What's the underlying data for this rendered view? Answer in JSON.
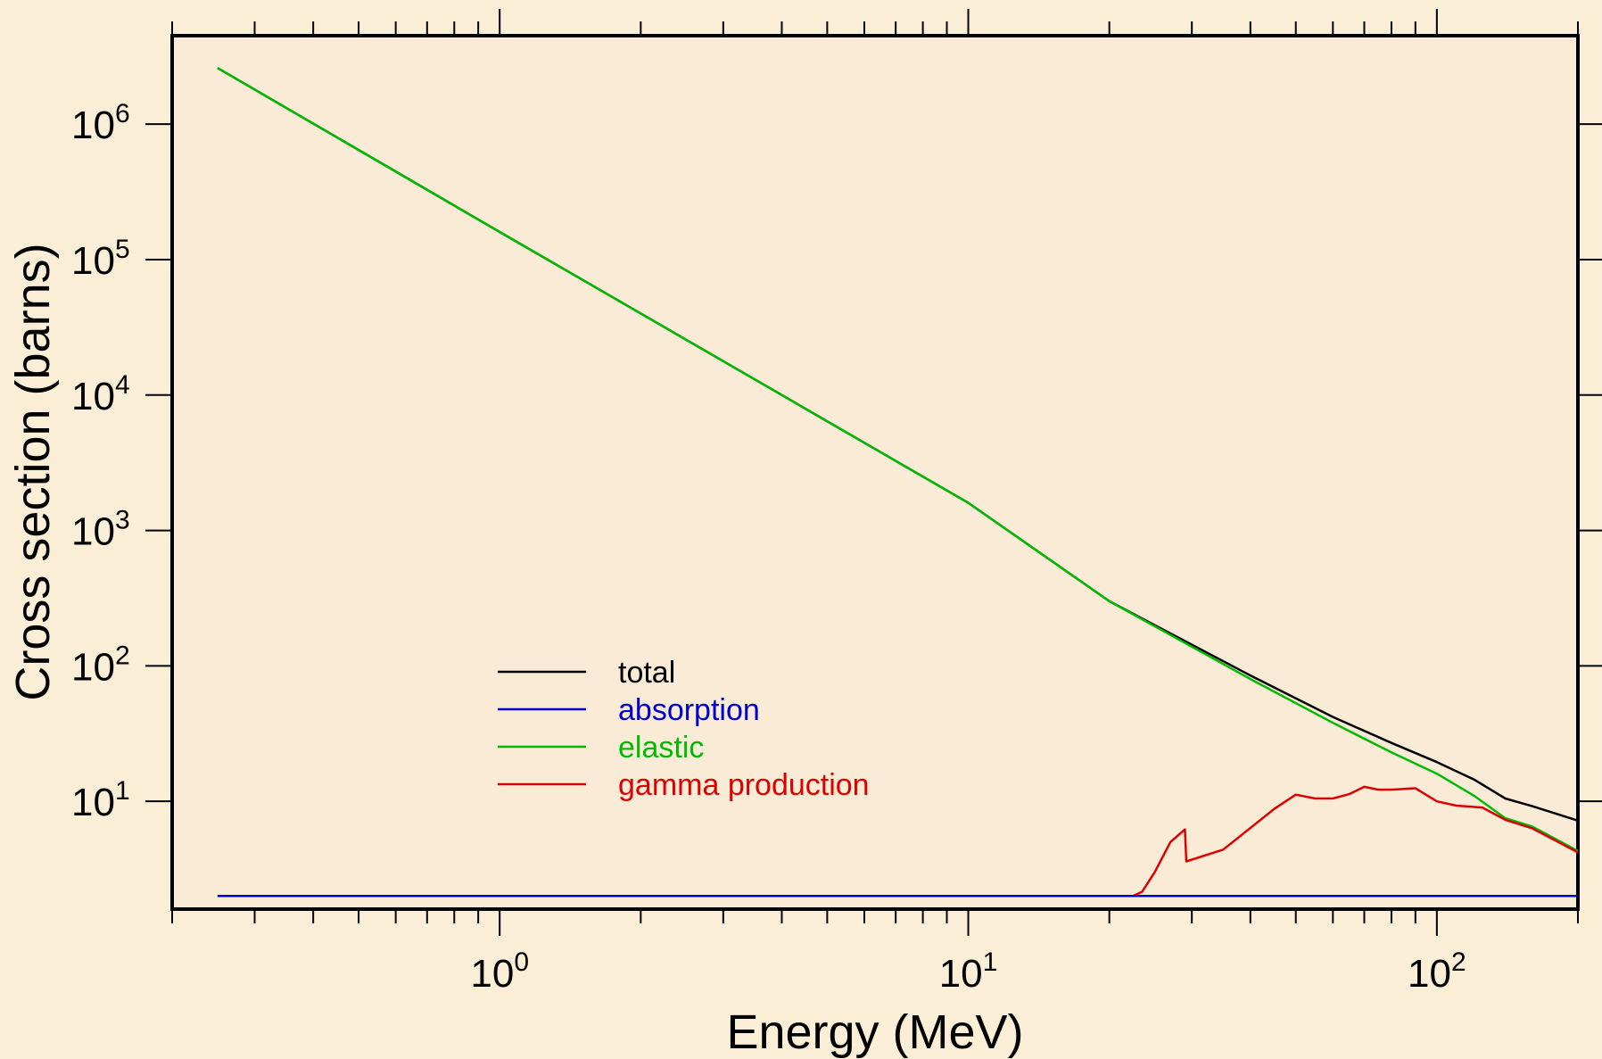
{
  "colors": {
    "page_background": "#fbeed7",
    "plot_background": "#faebd7",
    "total": "#000000",
    "absorption": "#0000cc",
    "elastic": "#00bb00",
    "gamma_production": "#dd0000"
  },
  "chart_data": {
    "type": "line",
    "xscale": "log",
    "yscale": "log",
    "xlabel": "Energy (MeV)",
    "ylabel": "Cross section (barns)",
    "xlim": [
      0.2,
      200
    ],
    "ylim": [
      1.6,
      4500000
    ],
    "x_ticks": [
      {
        "base": "10",
        "exp": "0",
        "value": 1
      },
      {
        "base": "10",
        "exp": "1",
        "value": 10
      },
      {
        "base": "10",
        "exp": "2",
        "value": 100
      }
    ],
    "y_ticks": [
      {
        "base": "10",
        "exp": "1",
        "value": 10
      },
      {
        "base": "10",
        "exp": "2",
        "value": 100
      },
      {
        "base": "10",
        "exp": "3",
        "value": 1000
      },
      {
        "base": "10",
        "exp": "4",
        "value": 10000
      },
      {
        "base": "10",
        "exp": "5",
        "value": 100000
      },
      {
        "base": "10",
        "exp": "6",
        "value": 1000000
      }
    ],
    "grid": false,
    "legend_position": "lower-left",
    "series": [
      {
        "name": "total",
        "color": "#000000",
        "points": [
          [
            0.25,
            2600000
          ],
          [
            1,
            160000
          ],
          [
            10,
            1600
          ],
          [
            20,
            300
          ],
          [
            40,
            85
          ],
          [
            60,
            42
          ],
          [
            80,
            27
          ],
          [
            100,
            19.5
          ],
          [
            120,
            14.5
          ],
          [
            140,
            10.5
          ],
          [
            160,
            9.2
          ],
          [
            200,
            7.2
          ]
        ]
      },
      {
        "name": "absorption",
        "color": "#0000cc",
        "points": [
          [
            0.25,
            2
          ],
          [
            20,
            2
          ],
          [
            100,
            2
          ],
          [
            200,
            2
          ]
        ]
      },
      {
        "name": "elastic",
        "color": "#00bb00",
        "points": [
          [
            0.25,
            2600000
          ],
          [
            1,
            160000
          ],
          [
            10,
            1600
          ],
          [
            20,
            300
          ],
          [
            40,
            80
          ],
          [
            60,
            38
          ],
          [
            80,
            23
          ],
          [
            100,
            16
          ],
          [
            120,
            11
          ],
          [
            140,
            7.5
          ],
          [
            160,
            6.5
          ],
          [
            200,
            4.3
          ]
        ]
      },
      {
        "name": "gamma production",
        "color": "#dd0000",
        "points": [
          [
            0.25,
            2
          ],
          [
            22.5,
            2
          ],
          [
            23.5,
            2.15
          ],
          [
            25,
            3
          ],
          [
            27,
            5
          ],
          [
            29,
            6.2
          ],
          [
            29.2,
            3.6
          ],
          [
            35,
            4.4
          ],
          [
            45,
            8.8
          ],
          [
            50,
            11.2
          ],
          [
            55,
            10.5
          ],
          [
            60,
            10.5
          ],
          [
            65,
            11.3
          ],
          [
            70,
            12.8
          ],
          [
            75,
            12.2
          ],
          [
            80,
            12.2
          ],
          [
            90,
            12.5
          ],
          [
            100,
            10
          ],
          [
            110,
            9.3
          ],
          [
            125,
            9
          ],
          [
            140,
            7.3
          ],
          [
            160,
            6.3
          ],
          [
            200,
            4.2
          ]
        ]
      }
    ]
  }
}
